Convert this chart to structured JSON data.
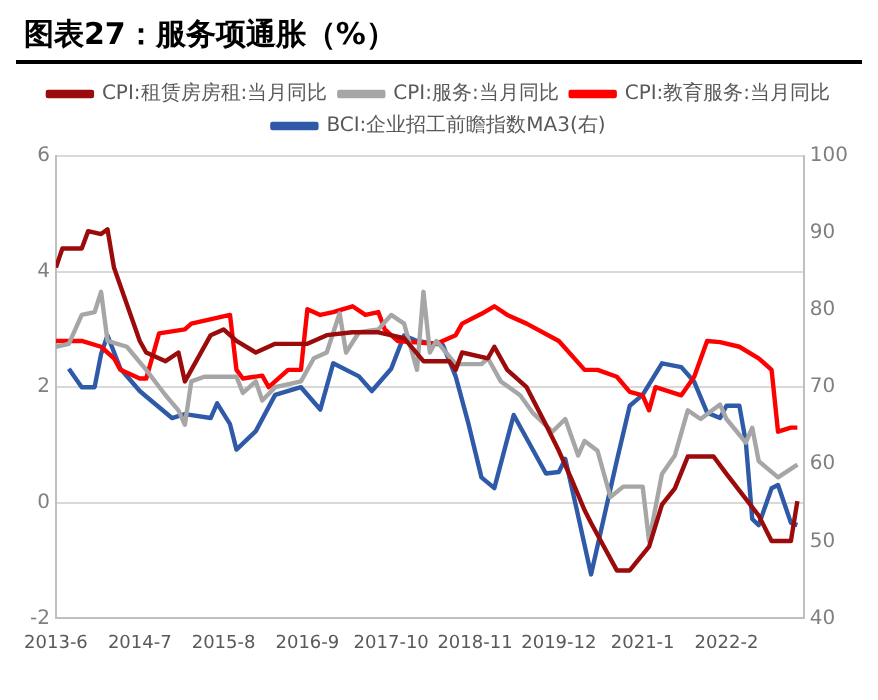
{
  "chart_data": {
    "type": "line",
    "title": "图表27：服务项通胀（%）",
    "legend": "top",
    "grid": "y",
    "marker": "none",
    "line_style": "solid",
    "xlim": [
      "2013-06",
      "2023-02"
    ],
    "xticks": [
      {
        "value": "2013-06",
        "label": "2013-6"
      },
      {
        "value": "2014-07",
        "label": "2014-7"
      },
      {
        "value": "2015-08",
        "label": "2015-8"
      },
      {
        "value": "2016-09",
        "label": "2016-9"
      },
      {
        "value": "2017-10",
        "label": "2017-10"
      },
      {
        "value": "2018-11",
        "label": "2018-11"
      },
      {
        "value": "2019-12",
        "label": "2019-12"
      },
      {
        "value": "2021-01",
        "label": "2021-1"
      },
      {
        "value": "2022-02",
        "label": "2022-2"
      }
    ],
    "ylim": [
      -2,
      6
    ],
    "yticks": [
      -2,
      0,
      2,
      4,
      6
    ],
    "y2lim": [
      40,
      100
    ],
    "y2ticks": [
      40,
      50,
      60,
      70,
      80,
      90,
      100
    ],
    "series": [
      {
        "name": "CPI:租赁房房租:当月同比",
        "color": "#9b0b0b",
        "x": [
          "2013-06",
          "2013-07",
          "2013-10",
          "2013-11",
          "2014-01",
          "2014-02",
          "2014-03",
          "2014-07",
          "2014-08",
          "2014-11",
          "2015-01",
          "2015-02",
          "2015-03",
          "2015-06",
          "2015-08",
          "2015-10",
          "2016-01",
          "2016-04",
          "2016-09",
          "2016-12",
          "2017-04",
          "2017-08",
          "2017-12",
          "2018-03",
          "2018-07",
          "2018-08",
          "2018-09",
          "2019-01",
          "2019-02",
          "2019-04",
          "2019-07",
          "2019-10",
          "2019-12",
          "2020-02",
          "2020-04",
          "2020-05",
          "2020-09",
          "2020-11",
          "2021-02",
          "2021-04",
          "2021-06",
          "2021-08",
          "2021-12",
          "2022-02",
          "2022-07",
          "2022-09",
          "2022-11",
          "2022-12",
          "2023-01"
        ],
        "values": [
          4.07,
          4.4,
          4.4,
          4.7,
          4.65,
          4.73,
          4.07,
          2.8,
          2.6,
          2.45,
          2.6,
          2.1,
          2.3,
          2.9,
          3.0,
          2.8,
          2.6,
          2.75,
          2.75,
          2.9,
          2.95,
          2.95,
          2.85,
          2.45,
          2.45,
          2.3,
          2.6,
          2.5,
          2.7,
          2.3,
          2.0,
          1.35,
          0.9,
          0.4,
          -0.13,
          -0.35,
          -1.17,
          -1.17,
          -0.76,
          -0.03,
          0.25,
          0.8,
          0.8,
          0.5,
          -0.22,
          -0.66,
          -0.66,
          -0.66,
          0.03
        ]
      },
      {
        "name": "CPI:服务:当月同比",
        "color": "#a6a6a6",
        "x": [
          "2013-06",
          "2013-08",
          "2013-10",
          "2013-12",
          "2014-01",
          "2014-02",
          "2014-05",
          "2014-08",
          "2014-11",
          "2015-01",
          "2015-02",
          "2015-03",
          "2015-05",
          "2015-10",
          "2015-11",
          "2016-01",
          "2016-02",
          "2016-04",
          "2016-08",
          "2016-10",
          "2016-12",
          "2017-02",
          "2017-03",
          "2017-05",
          "2017-08",
          "2017-10",
          "2017-12",
          "2018-02",
          "2018-03",
          "2018-04",
          "2018-05",
          "2018-08",
          "2018-12",
          "2019-01",
          "2019-03",
          "2019-06",
          "2019-08",
          "2019-11",
          "2020-01",
          "2020-03",
          "2020-04",
          "2020-06",
          "2020-08",
          "2020-10",
          "2021-01",
          "2021-02",
          "2021-04",
          "2021-06",
          "2021-08",
          "2021-10",
          "2022-01",
          "2022-02",
          "2022-05",
          "2022-06",
          "2022-07",
          "2022-10",
          "2023-01"
        ],
        "values": [
          2.7,
          2.75,
          3.25,
          3.3,
          3.65,
          2.8,
          2.7,
          2.3,
          1.86,
          1.6,
          1.35,
          2.1,
          2.18,
          2.18,
          1.9,
          2.1,
          1.77,
          2.0,
          2.1,
          2.5,
          2.6,
          3.28,
          2.6,
          2.95,
          3.0,
          3.25,
          3.1,
          2.3,
          3.65,
          2.6,
          2.8,
          2.4,
          2.4,
          2.5,
          2.1,
          1.86,
          1.55,
          1.23,
          1.45,
          0.82,
          1.07,
          0.9,
          0.1,
          0.28,
          0.28,
          -0.66,
          0.5,
          0.82,
          1.6,
          1.45,
          1.7,
          1.45,
          1.04,
          1.3,
          0.72,
          0.44,
          0.66
        ]
      },
      {
        "name": "CPI:教育服务:当月同比",
        "color": "#ff0000",
        "x": [
          "2013-06",
          "2013-10",
          "2014-01",
          "2014-03",
          "2014-04",
          "2014-07",
          "2014-08",
          "2014-10",
          "2015-02",
          "2015-03",
          "2015-09",
          "2015-10",
          "2015-11",
          "2016-02",
          "2016-03",
          "2016-06",
          "2016-08",
          "2016-09",
          "2016-11",
          "2017-01",
          "2017-04",
          "2017-06",
          "2017-08",
          "2017-09",
          "2017-11",
          "2018-05",
          "2018-08",
          "2018-09",
          "2018-12",
          "2019-02",
          "2019-04",
          "2019-07",
          "2019-12",
          "2020-04",
          "2020-06",
          "2020-09",
          "2020-11",
          "2021-01",
          "2021-02",
          "2021-03",
          "2021-07",
          "2021-09",
          "2021-11",
          "2022-01",
          "2022-04",
          "2022-07",
          "2022-09",
          "2022-10",
          "2022-12",
          "2023-01"
        ],
        "values": [
          2.8,
          2.8,
          2.7,
          2.5,
          2.3,
          2.15,
          2.15,
          2.93,
          3.0,
          3.1,
          3.25,
          2.3,
          2.15,
          2.2,
          2.0,
          2.3,
          2.3,
          3.35,
          3.25,
          3.3,
          3.4,
          3.25,
          3.3,
          3.0,
          2.8,
          2.75,
          2.9,
          3.1,
          3.27,
          3.4,
          3.25,
          3.1,
          2.8,
          2.3,
          2.3,
          2.18,
          1.92,
          1.86,
          1.6,
          2.0,
          1.86,
          2.18,
          2.8,
          2.78,
          2.7,
          2.5,
          2.3,
          1.23,
          1.3,
          1.3
        ]
      },
      {
        "name": "BCI:企业招工前瞻指数MA3(右)",
        "color": "#2e5aa8",
        "axis": "y2",
        "x": [
          "2013-08",
          "2013-10",
          "2013-12",
          "2014-01",
          "2014-02",
          "2014-04",
          "2014-07",
          "2014-08",
          "2014-12",
          "2015-02",
          "2015-06",
          "2015-07",
          "2015-09",
          "2015-10",
          "2016-01",
          "2016-04",
          "2016-08",
          "2016-11",
          "2017-01",
          "2017-05",
          "2017-07",
          "2017-10",
          "2017-12",
          "2018-02",
          "2018-06",
          "2018-08",
          "2018-10",
          "2018-12",
          "2019-02",
          "2019-05",
          "2019-10",
          "2019-12",
          "2020-01",
          "2020-03",
          "2020-05",
          "2020-09",
          "2020-11",
          "2021-01",
          "2021-04",
          "2021-07",
          "2021-09",
          "2021-11",
          "2022-01",
          "2022-02",
          "2022-04",
          "2022-05",
          "2022-06",
          "2022-07",
          "2022-09",
          "2022-10",
          "2022-12",
          "2023-01"
        ],
        "values": [
          72.4,
          70,
          70,
          74.3,
          76.7,
          72.4,
          69.5,
          68.8,
          66,
          66.5,
          66,
          67.9,
          65.2,
          61.9,
          64.3,
          69,
          70,
          67.1,
          73.1,
          71.4,
          69.5,
          72.4,
          76.7,
          76,
          75.5,
          71.4,
          65.2,
          58.3,
          56.9,
          66.4,
          58.8,
          59,
          60.7,
          53.3,
          45.7,
          60.5,
          67.6,
          69,
          73.1,
          72.6,
          70.7,
          66.7,
          66,
          67.6,
          67.6,
          62.9,
          52.9,
          52.1,
          56.9,
          57.3,
          52.4,
          52.1
        ]
      }
    ]
  }
}
